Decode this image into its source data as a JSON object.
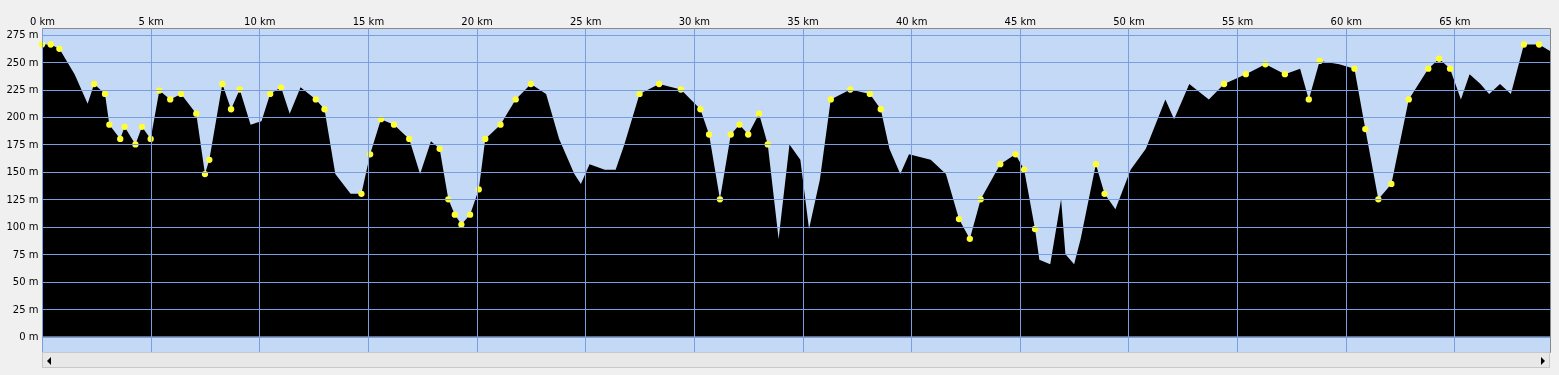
{
  "chart_data": {
    "type": "area",
    "grid": true,
    "xlim": [
      0,
      69.4
    ],
    "ylim": [
      -14,
      281
    ],
    "xticks": [
      {
        "value": 0,
        "label": "0 km"
      },
      {
        "value": 5,
        "label": "5 km"
      },
      {
        "value": 10,
        "label": "10 km"
      },
      {
        "value": 15,
        "label": "15 km"
      },
      {
        "value": 20,
        "label": "20 km"
      },
      {
        "value": 25,
        "label": "25 km"
      },
      {
        "value": 30,
        "label": "30 km"
      },
      {
        "value": 35,
        "label": "35 km"
      },
      {
        "value": 40,
        "label": "40 km"
      },
      {
        "value": 45,
        "label": "45 km"
      },
      {
        "value": 50,
        "label": "50 km"
      },
      {
        "value": 55,
        "label": "55 km"
      },
      {
        "value": 60,
        "label": "60 km"
      },
      {
        "value": 65,
        "label": "65 km"
      }
    ],
    "yticks": [
      {
        "value": 0,
        "label": "0 m"
      },
      {
        "value": 25,
        "label": "25 m"
      },
      {
        "value": 50,
        "label": "50 m"
      },
      {
        "value": 75,
        "label": "75 m"
      },
      {
        "value": 100,
        "label": "100 m"
      },
      {
        "value": 125,
        "label": "125 m"
      },
      {
        "value": 150,
        "label": "150 m"
      },
      {
        "value": 175,
        "label": "175 m"
      },
      {
        "value": 200,
        "label": "200 m"
      },
      {
        "value": 225,
        "label": "225 m"
      },
      {
        "value": 250,
        "label": "250 m"
      },
      {
        "value": 275,
        "label": "275 m"
      }
    ],
    "series": [
      {
        "color": "#000000",
        "x": [
          0,
          0.4,
          0.8,
          1.5,
          2.1,
          2.4,
          2.9,
          3.1,
          3.6,
          3.8,
          4.3,
          4.6,
          5.0,
          5.4,
          5.9,
          6.4,
          7.1,
          7.5,
          7.7,
          8.3,
          8.7,
          9.1,
          9.6,
          10.1,
          10.5,
          11.0,
          11.4,
          11.9,
          12.6,
          13.0,
          13.5,
          14.2,
          14.7,
          15.1,
          15.6,
          16.2,
          16.9,
          17.4,
          17.9,
          18.3,
          18.7,
          19.0,
          19.3,
          19.7,
          20.1,
          20.4,
          21.1,
          21.8,
          22.5,
          23.2,
          23.8,
          24.5,
          24.8,
          25.2,
          25.9,
          26.4,
          26.8,
          27.5,
          28.4,
          29.4,
          30.3,
          30.7,
          31.2,
          31.7,
          32.1,
          32.5,
          33.0,
          33.4,
          33.9,
          34.4,
          34.9,
          35.3,
          35.8,
          36.3,
          37.2,
          38.1,
          38.6,
          39.0,
          39.5,
          39.9,
          40.9,
          41.6,
          42.2,
          42.7,
          43.2,
          44.1,
          44.8,
          45.2,
          45.7,
          45.9,
          46.4,
          46.9,
          47.1,
          47.5,
          47.8,
          48.5,
          48.9,
          49.4,
          50.1,
          50.8,
          51.7,
          52.1,
          52.8,
          53.7,
          54.4,
          55.4,
          56.3,
          57.2,
          57.9,
          58.3,
          58.8,
          59.7,
          60.4,
          60.9,
          61.5,
          62.1,
          62.9,
          63.8,
          64.3,
          64.8,
          65.3,
          65.7,
          66.2,
          66.6,
          67.1,
          67.6,
          68.2,
          68.9,
          69.4
        ],
        "values": [
          266,
          266,
          262,
          239,
          212,
          230,
          221,
          193,
          180,
          191,
          175,
          191,
          180,
          224,
          216,
          221,
          203,
          148,
          161,
          230,
          207,
          225,
          193,
          196,
          221,
          227,
          203,
          227,
          216,
          207,
          148,
          130,
          130,
          166,
          198,
          193,
          180,
          148,
          178,
          171,
          125,
          111,
          102,
          111,
          134,
          180,
          193,
          216,
          230,
          221,
          180,
          148,
          139,
          157,
          152,
          152,
          175,
          221,
          230,
          225,
          207,
          184,
          125,
          184,
          193,
          184,
          203,
          175,
          89,
          175,
          161,
          98,
          143,
          216,
          225,
          221,
          207,
          171,
          148,
          166,
          161,
          148,
          107,
          89,
          125,
          157,
          166,
          152,
          98,
          70,
          66,
          125,
          75,
          66,
          89,
          157,
          130,
          116,
          152,
          171,
          216,
          198,
          230,
          216,
          230,
          239,
          248,
          239,
          244,
          216,
          251,
          248,
          244,
          189,
          125,
          139,
          216,
          244,
          253,
          244,
          216,
          239,
          230,
          221,
          230,
          221,
          266,
          266,
          260
        ]
      },
      {
        "type": "scatter",
        "marker": "circle",
        "color": "#ffff33",
        "x": [
          0,
          0.4,
          0.8,
          2.4,
          2.9,
          3.1,
          3.6,
          3.8,
          4.3,
          4.6,
          5.0,
          5.4,
          5.9,
          6.4,
          7.1,
          7.5,
          7.7,
          8.3,
          8.7,
          9.1,
          10.5,
          11.0,
          12.6,
          13.0,
          14.7,
          15.1,
          15.6,
          16.2,
          16.9,
          18.3,
          18.7,
          19.0,
          19.3,
          19.7,
          20.1,
          20.4,
          21.1,
          21.8,
          22.5,
          27.5,
          28.4,
          29.4,
          30.3,
          30.7,
          31.2,
          31.7,
          32.1,
          32.5,
          33.0,
          33.4,
          36.3,
          37.2,
          38.1,
          38.6,
          42.2,
          42.7,
          43.2,
          44.1,
          44.8,
          45.2,
          45.7,
          48.5,
          48.9,
          54.4,
          55.4,
          56.3,
          57.2,
          58.3,
          58.8,
          60.4,
          60.9,
          61.5,
          62.1,
          62.9,
          63.8,
          64.3,
          64.8,
          68.2,
          68.9
        ],
        "values": [
          266,
          266,
          262,
          230,
          221,
          193,
          180,
          191,
          175,
          191,
          180,
          224,
          216,
          221,
          203,
          148,
          161,
          230,
          207,
          225,
          221,
          227,
          216,
          207,
          130,
          166,
          198,
          193,
          180,
          171,
          125,
          111,
          102,
          111,
          134,
          180,
          193,
          216,
          230,
          221,
          230,
          225,
          207,
          184,
          125,
          184,
          193,
          184,
          203,
          175,
          216,
          225,
          221,
          207,
          107,
          89,
          125,
          157,
          166,
          152,
          98,
          157,
          130,
          230,
          239,
          248,
          239,
          216,
          251,
          244,
          189,
          125,
          139,
          216,
          244,
          253,
          244,
          266,
          266
        ]
      }
    ]
  }
}
